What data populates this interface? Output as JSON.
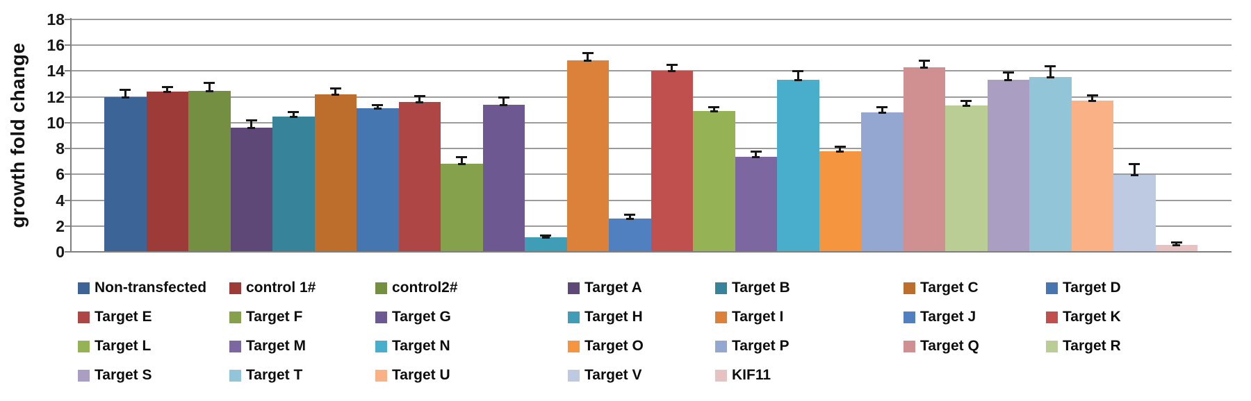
{
  "chart_data": {
    "type": "bar",
    "title": "",
    "xlabel": "",
    "ylabel": "growth fold change",
    "ylim": [
      0,
      18
    ],
    "yticks": [
      0,
      2,
      4,
      6,
      8,
      10,
      12,
      14,
      16,
      18
    ],
    "grid": true,
    "legend_position": "bottom",
    "legend_rows": 4,
    "legend_columns": 7,
    "error_bars": "plus_direction_with_caps",
    "axis_color": "#7f7f7f",
    "gridline_color": "#9b9b9b",
    "bars": [
      {
        "label": "Non-transfected",
        "value": 12.0,
        "error": 0.55,
        "color": "#3D6497"
      },
      {
        "label": "control 1#",
        "value": 12.4,
        "error": 0.4,
        "color": "#9D3B39"
      },
      {
        "label": "control2#",
        "value": 12.45,
        "error": 0.65,
        "color": "#758F42"
      },
      {
        "label": "Target A",
        "value": 9.6,
        "error": 0.6,
        "color": "#5D4877"
      },
      {
        "label": "Target B",
        "value": 10.5,
        "error": 0.35,
        "color": "#37839A"
      },
      {
        "label": "Target C",
        "value": 12.2,
        "error": 0.5,
        "color": "#BE6E2C"
      },
      {
        "label": "Target D",
        "value": 11.1,
        "error": 0.3,
        "color": "#4576B0"
      },
      {
        "label": "Target E",
        "value": 11.6,
        "error": 0.5,
        "color": "#AD4644"
      },
      {
        "label": "Target F",
        "value": 6.85,
        "error": 0.5,
        "color": "#86A14C"
      },
      {
        "label": "Target G",
        "value": 11.4,
        "error": 0.6,
        "color": "#6D5892"
      },
      {
        "label": "Target H",
        "value": 1.15,
        "error": 0.15,
        "color": "#3F9EB6"
      },
      {
        "label": "Target I",
        "value": 14.85,
        "error": 0.55,
        "color": "#DB8139"
      },
      {
        "label": "Target J",
        "value": 2.6,
        "error": 0.3,
        "color": "#5080C0"
      },
      {
        "label": "Target K",
        "value": 14.0,
        "error": 0.5,
        "color": "#BF504E"
      },
      {
        "label": "Target L",
        "value": 10.9,
        "error": 0.35,
        "color": "#95B254"
      },
      {
        "label": "Target M",
        "value": 7.35,
        "error": 0.45,
        "color": "#7D67A1"
      },
      {
        "label": "Target N",
        "value": 13.3,
        "error": 0.7,
        "color": "#48AECB"
      },
      {
        "label": "Target O",
        "value": 7.8,
        "error": 0.35,
        "color": "#F5953F"
      },
      {
        "label": "Target P",
        "value": 10.8,
        "error": 0.45,
        "color": "#94A7D0"
      },
      {
        "label": "Target Q",
        "value": 14.3,
        "error": 0.55,
        "color": "#D09092"
      },
      {
        "label": "Target R",
        "value": 11.35,
        "error": 0.35,
        "color": "#BACD95"
      },
      {
        "label": "Target S",
        "value": 13.3,
        "error": 0.6,
        "color": "#AB9EC3"
      },
      {
        "label": "Target T",
        "value": 13.55,
        "error": 0.85,
        "color": "#93C5D8"
      },
      {
        "label": "Target U",
        "value": 11.7,
        "error": 0.45,
        "color": "#F9B185"
      },
      {
        "label": "Target V",
        "value": 5.95,
        "error": 0.85,
        "color": "#BECAE1"
      },
      {
        "label": "KIF11",
        "value": 0.55,
        "error": 0.2,
        "color": "#E8C1C3"
      }
    ]
  }
}
